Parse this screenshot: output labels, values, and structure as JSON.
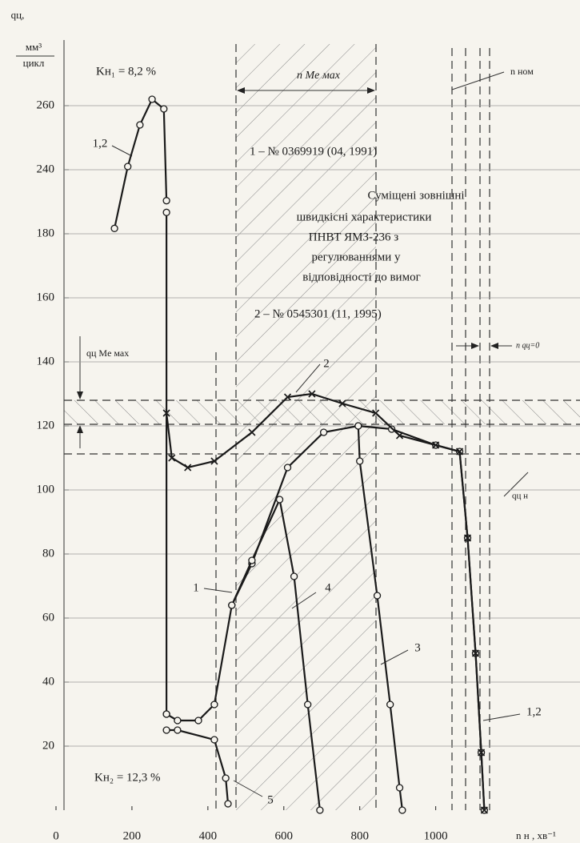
{
  "chart_data": {
    "type": "line",
    "ylabel": [
      "qц,",
      "мм³",
      "цикл"
    ],
    "xlabel": "n н , хв⁻¹",
    "xlim": [
      0,
      1380
    ],
    "xticks": [
      0,
      200,
      400,
      600,
      800,
      1000
    ],
    "ylim": [
      0,
      280
    ],
    "yticks": [
      20,
      40,
      60,
      80,
      100,
      120,
      140,
      160,
      180,
      240,
      260
    ],
    "grid": true,
    "color": "#1a1a1a",
    "series": [
      {
        "name": "1,2",
        "marker": "o",
        "x": [
          154,
          189,
          221,
          253,
          284,
          291,
          null,
          291,
          291
        ],
        "values": [
          185,
          241,
          254,
          262,
          259,
          211,
          null,
          200,
          30
        ]
      },
      {
        "name": "1",
        "marker": "o",
        "x": [
          291,
          320,
          375,
          417,
          463,
          516,
          610,
          705,
          796,
          884,
          1000,
          1063,
          1084,
          1105,
          1120,
          1128
        ],
        "values": [
          30,
          28,
          28,
          33,
          64,
          77,
          107,
          118,
          120,
          119,
          114,
          112,
          85,
          49,
          18,
          0
        ]
      },
      {
        "name": "2",
        "marker": "x",
        "x": [
          291,
          305,
          347,
          417,
          516,
          610,
          674,
          754,
          842,
          905,
          1000,
          1063,
          1084,
          1105,
          1120,
          1128
        ],
        "values": [
          124,
          110,
          107,
          109,
          118,
          129,
          130,
          127,
          124,
          117,
          114,
          112,
          85,
          49,
          18,
          0
        ]
      },
      {
        "name": "3",
        "marker": "o",
        "x": [
          796,
          800,
          846,
          880,
          905,
          912
        ],
        "values": [
          120,
          109,
          67,
          33,
          7,
          0
        ]
      },
      {
        "name": "4",
        "marker": "o",
        "x": [
          463,
          516,
          589,
          627,
          663,
          695
        ],
        "values": [
          64,
          78,
          97,
          73,
          33,
          0
        ]
      },
      {
        "name": "5",
        "marker": "o",
        "x": [
          291,
          320,
          417,
          447,
          453
        ],
        "values": [
          25,
          25,
          22,
          10,
          2
        ]
      }
    ],
    "annotations": [
      "Kн₁ = 8,2 %",
      "n Me мах",
      "n ном",
      "1 – № 0369919   (04, 1991)",
      "Суміщені зовнішні",
      "швидкісні характеристики",
      "ПНВТ ЯМЗ-236 з",
      "регулюваннями у",
      "відповідності до вимог",
      "2 – № 0545301   (11, 1995)",
      "n qц=0",
      "qц Me мах",
      "qц н",
      "Kн₂ = 12,3 %",
      "1,2"
    ]
  }
}
